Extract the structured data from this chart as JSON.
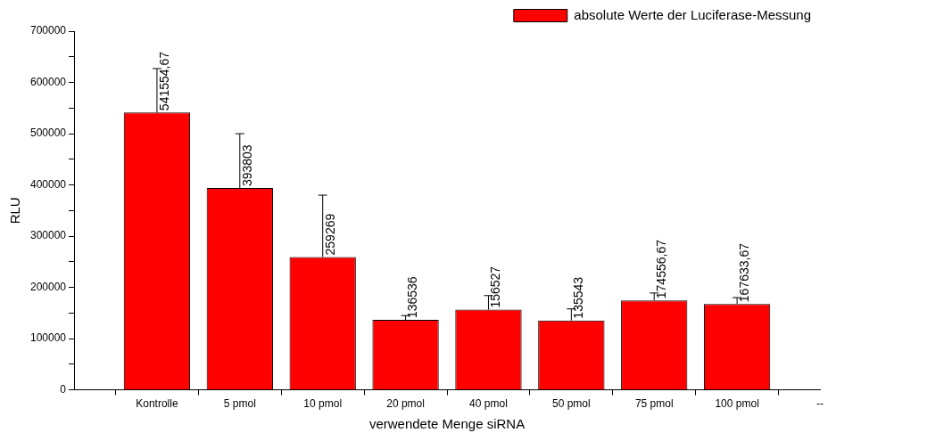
{
  "chart_data": {
    "type": "bar",
    "xlabel": "verwendete Menge siRNA",
    "ylabel": "RLU",
    "categories": [
      null,
      "Kontrolle",
      "5 pmol",
      "10 pmol",
      "20 pmol",
      "40 pmol",
      "50 pmol",
      "75 pmol",
      "100 pmol",
      "--"
    ],
    "series": [
      {
        "name": "absolute Werte der Luciferase-Messung",
        "color": "#ff0000",
        "values": [
          null,
          541554.67,
          393803,
          259269,
          136536,
          156527,
          135543,
          174556.67,
          167633.67,
          null
        ],
        "errors": [
          null,
          [
            541554.67,
            627000
          ],
          [
            393803,
            500000
          ],
          [
            259269,
            380000
          ],
          [
            136536,
            145000
          ],
          [
            156527,
            184000
          ],
          [
            135543,
            158000
          ],
          [
            174556.67,
            189000
          ],
          [
            167633.67,
            180000
          ],
          null
        ],
        "value_labels": [
          null,
          "541554,67",
          "393803",
          "259269",
          "136536",
          "156527",
          "135543",
          "174556,67",
          "167633,67",
          null
        ]
      }
    ],
    "ylim": [
      0,
      700000
    ],
    "yticks": [
      0,
      {
        "value": 50000,
        "label": null
      },
      100000,
      {
        "value": 150000,
        "label": null
      },
      200000,
      {
        "value": 250000,
        "label": null
      },
      300000,
      {
        "value": 350000,
        "label": null
      },
      400000,
      {
        "value": 450000,
        "label": null
      },
      500000,
      {
        "value": 550000,
        "label": null
      },
      600000,
      {
        "value": 650000,
        "label": null
      },
      700000
    ],
    "grid": false,
    "legend": "top right"
  }
}
